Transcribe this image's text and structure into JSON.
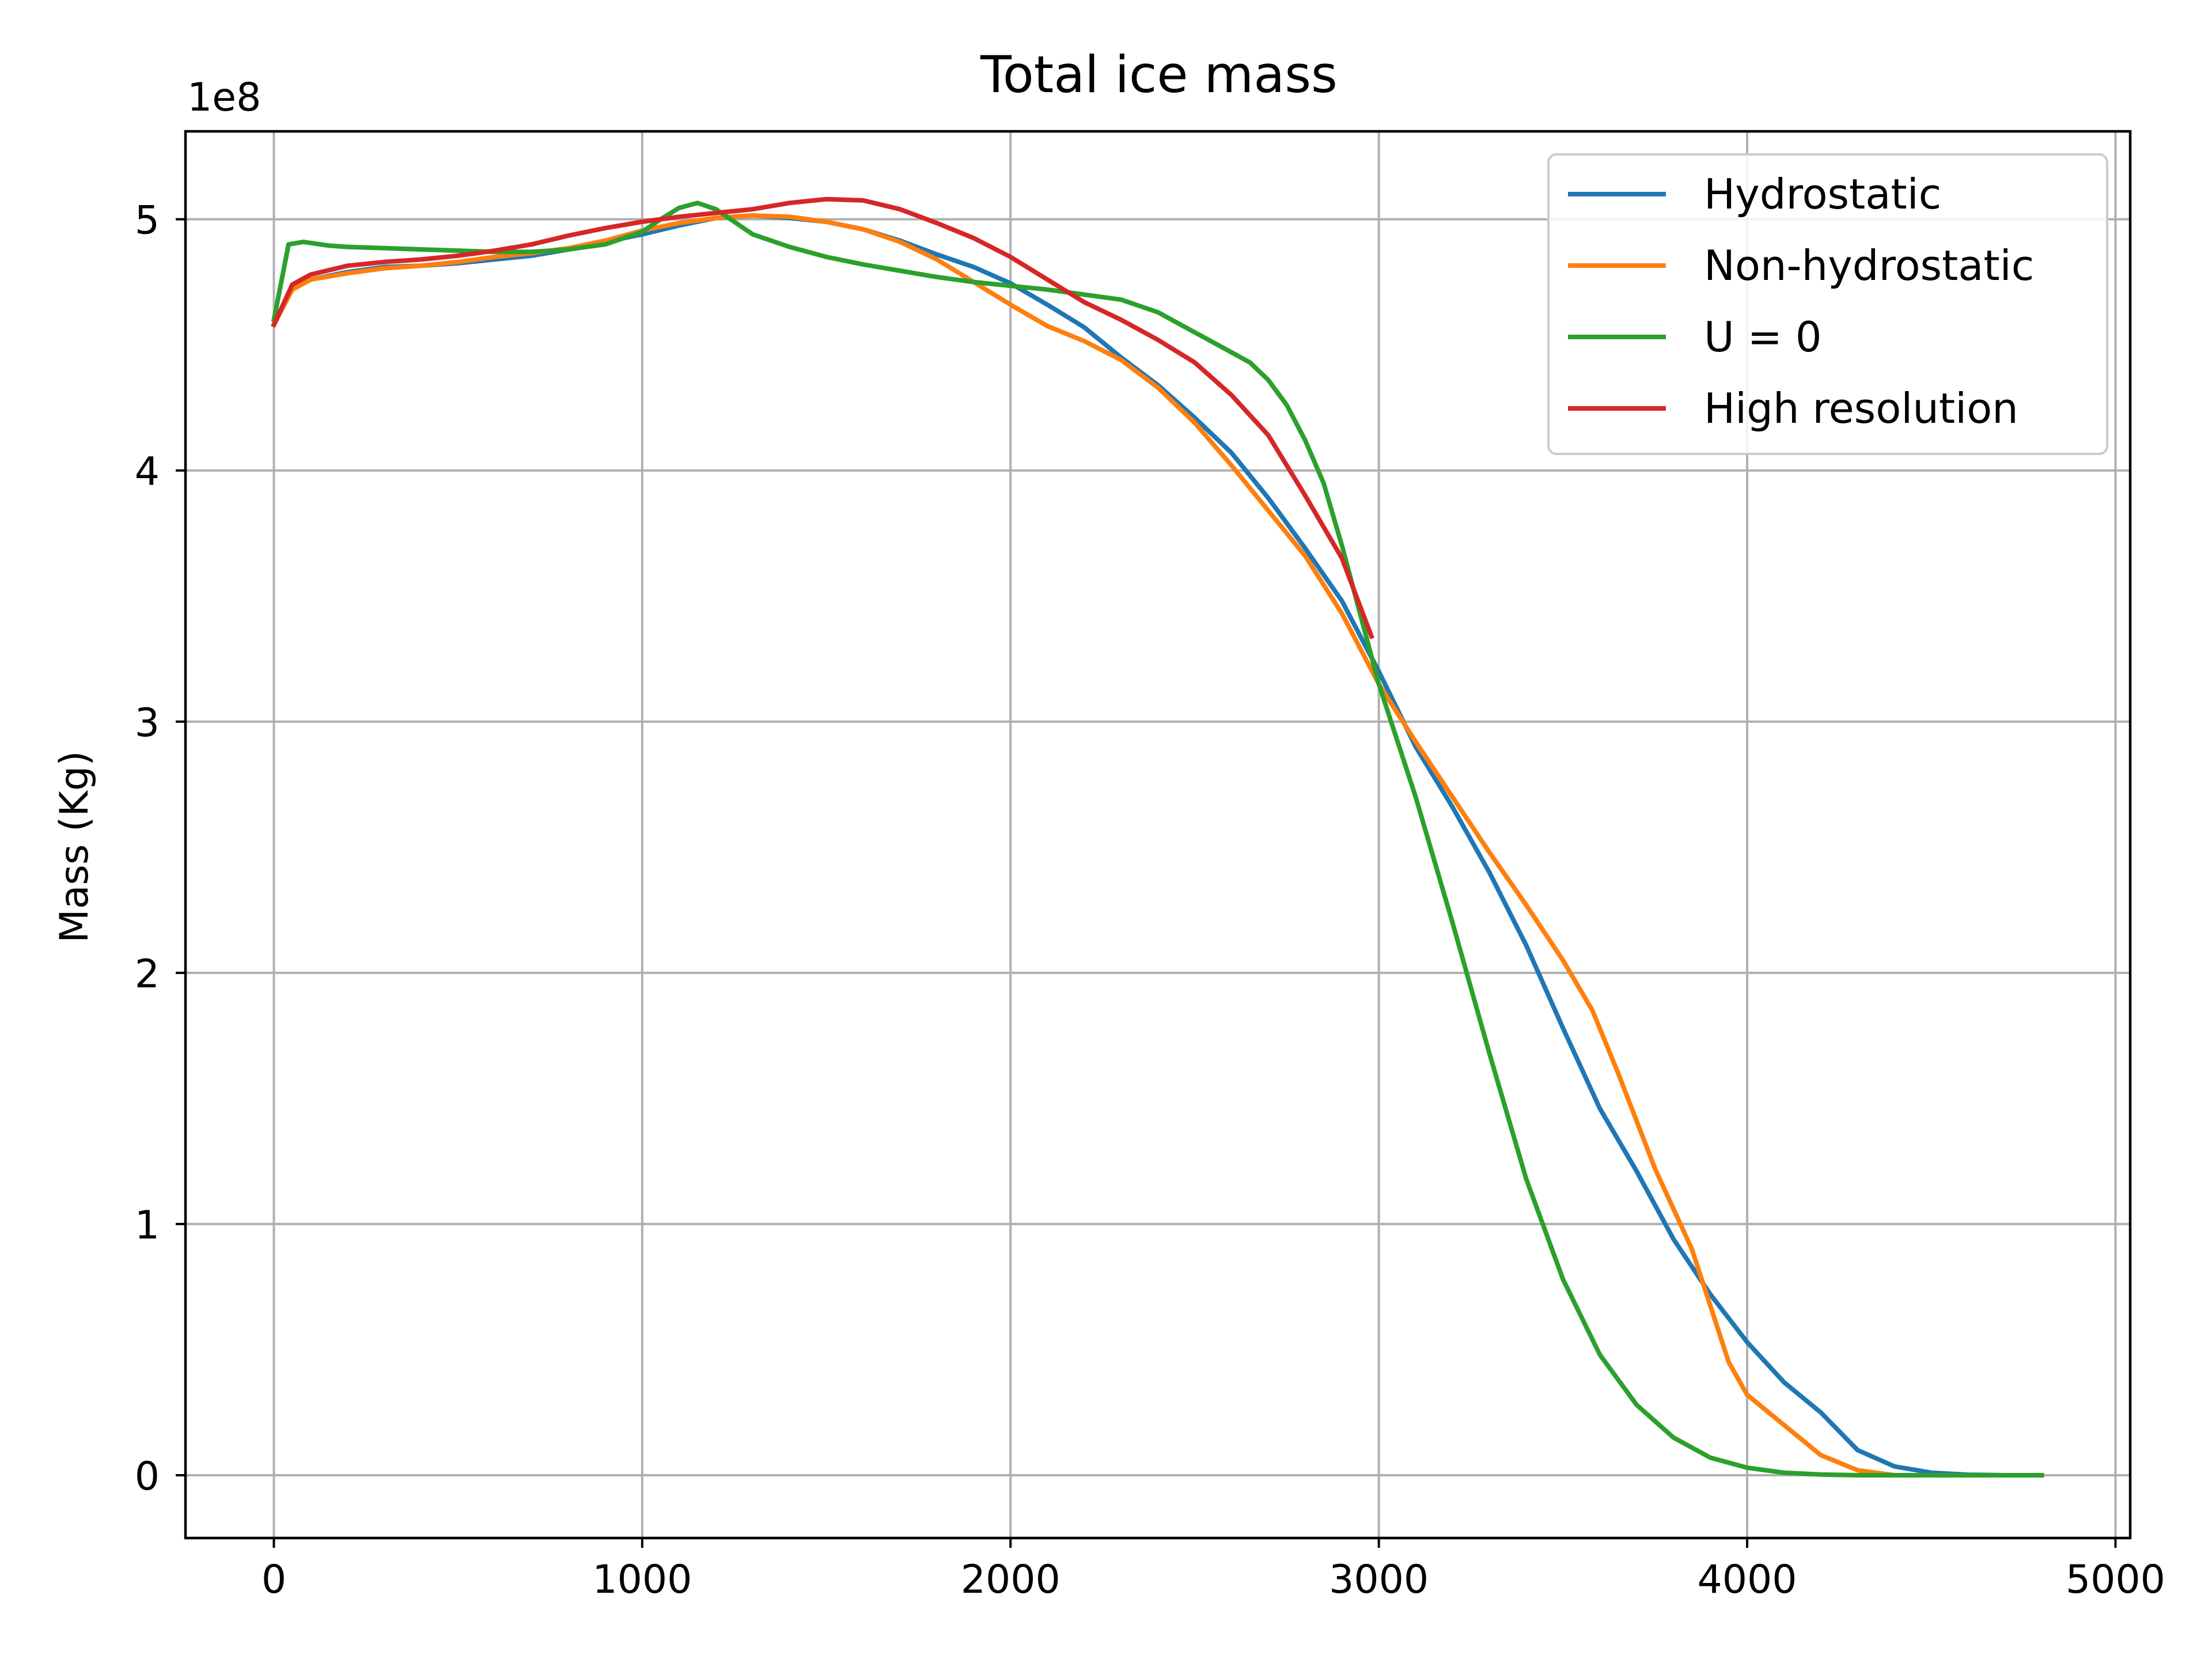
{
  "chart_data": {
    "type": "line",
    "title": "Total ice mass",
    "xlabel": "",
    "ylabel": "Mass (Kg)",
    "y_offset_label": "1e8",
    "xlim": [
      -240,
      5040
    ],
    "ylim": [
      -25000000.0,
      535000000.0
    ],
    "x_ticks": [
      0,
      1000,
      2000,
      3000,
      4000,
      5000
    ],
    "x_tick_labels": [
      "0",
      "1000",
      "2000",
      "3000",
      "4000",
      "5000"
    ],
    "y_ticks": [
      0,
      100000000,
      200000000,
      300000000,
      400000000,
      500000000
    ],
    "y_tick_labels": [
      "0",
      "1",
      "2",
      "3",
      "4",
      "5"
    ],
    "grid": true,
    "legend_position": "upper-right",
    "series": [
      {
        "name": "Hydrostatic",
        "color": "#1f77b4",
        "points": [
          [
            0,
            458000000
          ],
          [
            50,
            473000000
          ],
          [
            100,
            476000000
          ],
          [
            200,
            479000000
          ],
          [
            300,
            481000000
          ],
          [
            400,
            481500000
          ],
          [
            500,
            482500000
          ],
          [
            600,
            484000000
          ],
          [
            700,
            485500000
          ],
          [
            800,
            488000000
          ],
          [
            900,
            491000000
          ],
          [
            1000,
            494000000
          ],
          [
            1100,
            497500000
          ],
          [
            1200,
            500500000
          ],
          [
            1300,
            501500000
          ],
          [
            1400,
            500500000
          ],
          [
            1500,
            499000000
          ],
          [
            1600,
            496000000
          ],
          [
            1700,
            491500000
          ],
          [
            1800,
            486000000
          ],
          [
            1900,
            481000000
          ],
          [
            2000,
            474500000
          ],
          [
            2100,
            466000000
          ],
          [
            2200,
            457000000
          ],
          [
            2300,
            445000000
          ],
          [
            2400,
            434000000
          ],
          [
            2500,
            421000000
          ],
          [
            2600,
            407000000
          ],
          [
            2700,
            389000000
          ],
          [
            2800,
            369000000
          ],
          [
            2900,
            348000000
          ],
          [
            3000,
            320000000
          ],
          [
            3100,
            290000000
          ],
          [
            3200,
            266000000
          ],
          [
            3300,
            240000000
          ],
          [
            3400,
            211000000
          ],
          [
            3500,
            178000000
          ],
          [
            3600,
            146000000
          ],
          [
            3700,
            121000000
          ],
          [
            3800,
            94000000
          ],
          [
            3900,
            72000000
          ],
          [
            4000,
            53000000
          ],
          [
            4100,
            37000000
          ],
          [
            4200,
            25000000
          ],
          [
            4300,
            10000000
          ],
          [
            4400,
            3500000
          ],
          [
            4500,
            1000000
          ],
          [
            4600,
            200000
          ],
          [
            4700,
            0
          ],
          [
            4800,
            0
          ]
        ]
      },
      {
        "name": "Non-hydrostatic",
        "color": "#ff7f0e",
        "points": [
          [
            0,
            458000000
          ],
          [
            50,
            472000000
          ],
          [
            100,
            476000000
          ],
          [
            200,
            478500000
          ],
          [
            300,
            480500000
          ],
          [
            400,
            481500000
          ],
          [
            500,
            483000000
          ],
          [
            600,
            485000000
          ],
          [
            700,
            486500000
          ],
          [
            800,
            488500000
          ],
          [
            900,
            491500000
          ],
          [
            1000,
            495500000
          ],
          [
            1100,
            498500000
          ],
          [
            1200,
            500500000
          ],
          [
            1300,
            501500000
          ],
          [
            1400,
            501000000
          ],
          [
            1500,
            499000000
          ],
          [
            1600,
            496000000
          ],
          [
            1700,
            491000000
          ],
          [
            1800,
            484000000
          ],
          [
            1900,
            475000000
          ],
          [
            2000,
            466000000
          ],
          [
            2100,
            457500000
          ],
          [
            2200,
            451500000
          ],
          [
            2300,
            444000000
          ],
          [
            2400,
            433000000
          ],
          [
            2500,
            419000000
          ],
          [
            2600,
            402000000
          ],
          [
            2700,
            384000000
          ],
          [
            2800,
            366000000
          ],
          [
            2900,
            343000000
          ],
          [
            3000,
            315000000
          ],
          [
            3100,
            292000000
          ],
          [
            3200,
            270000000
          ],
          [
            3300,
            248000000
          ],
          [
            3400,
            227000000
          ],
          [
            3500,
            205000000
          ],
          [
            3580,
            185000000
          ],
          [
            3650,
            160000000
          ],
          [
            3750,
            122000000
          ],
          [
            3850,
            90000000
          ],
          [
            3950,
            45000000
          ],
          [
            4000,
            32000000
          ],
          [
            4100,
            20000000
          ],
          [
            4200,
            8000000
          ],
          [
            4300,
            2000000
          ],
          [
            4400,
            0
          ],
          [
            4500,
            0
          ],
          [
            4600,
            0
          ],
          [
            4700,
            0
          ],
          [
            4800,
            0
          ]
        ]
      },
      {
        "name": "U = 0",
        "color": "#2ca02c",
        "points": [
          [
            0,
            460000000
          ],
          [
            40,
            490000000
          ],
          [
            80,
            491000000
          ],
          [
            150,
            489500000
          ],
          [
            200,
            489000000
          ],
          [
            300,
            488500000
          ],
          [
            400,
            488000000
          ],
          [
            500,
            487500000
          ],
          [
            600,
            487000000
          ],
          [
            700,
            487000000
          ],
          [
            800,
            488000000
          ],
          [
            900,
            490000000
          ],
          [
            1000,
            495000000
          ],
          [
            1050,
            500000000
          ],
          [
            1100,
            504500000
          ],
          [
            1150,
            506500000
          ],
          [
            1200,
            504000000
          ],
          [
            1250,
            499000000
          ],
          [
            1300,
            494000000
          ],
          [
            1400,
            489000000
          ],
          [
            1500,
            485000000
          ],
          [
            1600,
            482000000
          ],
          [
            1700,
            479500000
          ],
          [
            1800,
            477000000
          ],
          [
            1900,
            475000000
          ],
          [
            2000,
            473500000
          ],
          [
            2100,
            472000000
          ],
          [
            2200,
            470000000
          ],
          [
            2300,
            468000000
          ],
          [
            2400,
            463000000
          ],
          [
            2500,
            455000000
          ],
          [
            2600,
            447000000
          ],
          [
            2650,
            443000000
          ],
          [
            2700,
            436000000
          ],
          [
            2750,
            426000000
          ],
          [
            2800,
            412000000
          ],
          [
            2850,
            395000000
          ],
          [
            2900,
            370000000
          ],
          [
            3000,
            315000000
          ],
          [
            3100,
            270000000
          ],
          [
            3200,
            220000000
          ],
          [
            3300,
            168000000
          ],
          [
            3400,
            118000000
          ],
          [
            3500,
            78000000
          ],
          [
            3600,
            48000000
          ],
          [
            3700,
            28000000
          ],
          [
            3800,
            15000000
          ],
          [
            3900,
            7000000
          ],
          [
            4000,
            3000000
          ],
          [
            4100,
            1000000
          ],
          [
            4200,
            300000
          ],
          [
            4300,
            0
          ],
          [
            4400,
            0
          ],
          [
            4500,
            0
          ],
          [
            4600,
            0
          ],
          [
            4700,
            0
          ],
          [
            4800,
            0
          ]
        ]
      },
      {
        "name": "High resolution",
        "color": "#d62728",
        "points": [
          [
            0,
            458000000
          ],
          [
            50,
            474000000
          ],
          [
            100,
            478000000
          ],
          [
            200,
            481500000
          ],
          [
            300,
            483000000
          ],
          [
            400,
            484000000
          ],
          [
            500,
            485500000
          ],
          [
            600,
            487500000
          ],
          [
            700,
            490000000
          ],
          [
            800,
            493500000
          ],
          [
            900,
            496500000
          ],
          [
            1000,
            499000000
          ],
          [
            1100,
            501000000
          ],
          [
            1200,
            502500000
          ],
          [
            1300,
            504000000
          ],
          [
            1400,
            506500000
          ],
          [
            1500,
            508000000
          ],
          [
            1600,
            507500000
          ],
          [
            1700,
            504000000
          ],
          [
            1800,
            498500000
          ],
          [
            1900,
            492500000
          ],
          [
            2000,
            485000000
          ],
          [
            2100,
            476000000
          ],
          [
            2200,
            467000000
          ],
          [
            2300,
            460000000
          ],
          [
            2400,
            452000000
          ],
          [
            2500,
            443000000
          ],
          [
            2600,
            430000000
          ],
          [
            2700,
            414000000
          ],
          [
            2800,
            390000000
          ],
          [
            2900,
            365000000
          ],
          [
            2980,
            334000000
          ]
        ]
      }
    ]
  }
}
